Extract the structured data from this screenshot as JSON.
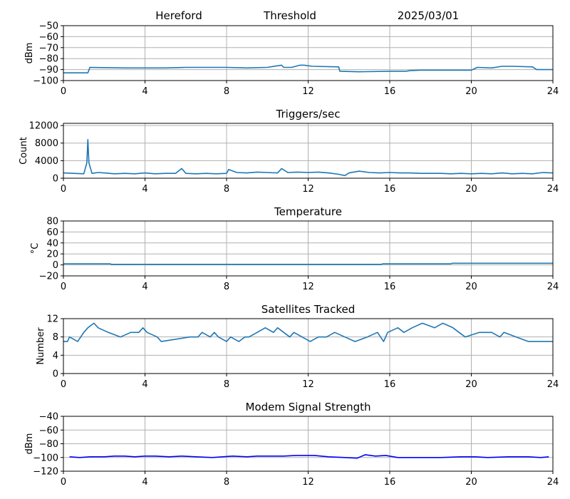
{
  "header": {
    "station": "Hereford",
    "metric": "Threshold",
    "date": "2025/03/01"
  },
  "colors": {
    "series": "#1f77b4",
    "modem": "#0000ff",
    "grid": "#b0b0b0",
    "axis": "#000000"
  },
  "chart_data": [
    {
      "type": "line",
      "title": "",
      "xlabel": "",
      "ylabel": "dBm",
      "xlim": [
        0,
        24
      ],
      "ylim": [
        -100,
        -50
      ],
      "xticks": [
        0,
        4,
        8,
        12,
        16,
        20,
        24
      ],
      "yticks": [
        -100,
        -90,
        -80,
        -70,
        -60,
        -50
      ],
      "grid": true,
      "series": [
        {
          "x": [
            0,
            1.2,
            1.3,
            3,
            5,
            6,
            8,
            9,
            10,
            10.7,
            10.8,
            11.2,
            11.6,
            11.8,
            12.2,
            13.5,
            13.55,
            14.5,
            16,
            16.8,
            17,
            17.5,
            18,
            20,
            20.3,
            21,
            21.5,
            22,
            23,
            23.2,
            24
          ],
          "y": [
            -93,
            -93,
            -88,
            -88.5,
            -88.5,
            -88,
            -88,
            -88.5,
            -88,
            -86,
            -88,
            -88,
            -86,
            -86,
            -87,
            -87.5,
            -91.5,
            -92,
            -91.5,
            -91.5,
            -91,
            -90.5,
            -90.5,
            -90.5,
            -88,
            -88.5,
            -87,
            -87,
            -87.5,
            -90,
            -90
          ]
        }
      ]
    },
    {
      "type": "line",
      "title": "Triggers/sec",
      "xlabel": "",
      "ylabel": "Count",
      "xlim": [
        0,
        24
      ],
      "ylim": [
        0,
        12500
      ],
      "xticks": [
        0,
        4,
        8,
        12,
        16,
        20,
        24
      ],
      "yticks": [
        0,
        4000,
        8000,
        12000
      ],
      "grid": true,
      "series": [
        {
          "x": [
            0,
            0.5,
            1.0,
            1.15,
            1.2,
            1.25,
            1.4,
            1.7,
            2,
            2.5,
            3,
            3.5,
            4,
            4.5,
            5,
            5.5,
            5.8,
            6,
            6.5,
            7,
            7.5,
            8,
            8.1,
            8.5,
            9,
            9.5,
            10,
            10.5,
            10.7,
            11,
            11.5,
            12,
            12.5,
            13,
            13.5,
            13.8,
            14,
            14.5,
            15,
            15.5,
            16,
            16.5,
            17,
            17.5,
            18,
            18.5,
            19,
            19.5,
            20,
            20.5,
            21,
            21.5,
            22,
            22.5,
            23,
            23.5,
            24
          ],
          "y": [
            1200,
            1100,
            1000,
            3500,
            8800,
            3500,
            1100,
            1300,
            1200,
            1000,
            1100,
            1000,
            1200,
            1000,
            1100,
            1100,
            2200,
            1100,
            1000,
            1100,
            1000,
            1100,
            2000,
            1300,
            1200,
            1400,
            1300,
            1200,
            2200,
            1300,
            1400,
            1300,
            1400,
            1200,
            900,
            600,
            1200,
            1600,
            1300,
            1200,
            1300,
            1200,
            1200,
            1100,
            1100,
            1100,
            1000,
            1100,
            1000,
            1100,
            1000,
            1200,
            1000,
            1100,
            1000,
            1300,
            1200
          ]
        }
      ]
    },
    {
      "type": "line",
      "title": "Temperature",
      "xlabel": "",
      "ylabel": "°C",
      "xlim": [
        0,
        24
      ],
      "ylim": [
        -20,
        80
      ],
      "xticks": [
        0,
        4,
        8,
        12,
        16,
        20,
        24
      ],
      "yticks": [
        -20,
        0,
        20,
        40,
        60,
        80
      ],
      "grid": true,
      "series": [
        {
          "x": [
            0,
            2.3,
            2.35,
            15.6,
            15.65,
            19,
            19.05,
            24
          ],
          "y": [
            2,
            2,
            1,
            1,
            2,
            2,
            3,
            3
          ]
        }
      ]
    },
    {
      "type": "line",
      "title": "Satellites Tracked",
      "xlabel": "",
      "ylabel": "Number",
      "xlim": [
        0,
        24
      ],
      "ylim": [
        0,
        12
      ],
      "xticks": [
        0,
        4,
        8,
        12,
        16,
        20,
        24
      ],
      "yticks": [
        0,
        4,
        8,
        12
      ],
      "grid": true,
      "series": [
        {
          "x": [
            0,
            0.2,
            0.3,
            0.7,
            1.0,
            1.2,
            1.5,
            1.7,
            2.2,
            2.8,
            3.3,
            3.7,
            3.9,
            4.1,
            4.6,
            4.8,
            6.2,
            6.6,
            6.8,
            7.2,
            7.4,
            7.6,
            8.0,
            8.2,
            8.6,
            8.9,
            9.1,
            9.5,
            9.9,
            10.3,
            10.5,
            11.1,
            11.3,
            12.1,
            12.5,
            12.9,
            13.3,
            13.8,
            14.3,
            14.9,
            15.4,
            15.7,
            15.9,
            16.4,
            16.7,
            17.1,
            17.6,
            18.2,
            18.6,
            19.1,
            19.4,
            19.7,
            20.4,
            21.0,
            21.4,
            21.6,
            22.2,
            22.8,
            23.5,
            24
          ],
          "y": [
            7,
            7,
            8,
            7,
            9,
            10,
            11,
            10,
            9,
            8,
            9,
            9,
            10,
            9,
            8,
            7,
            8,
            8,
            9,
            8,
            9,
            8,
            7,
            8,
            7,
            8,
            8,
            9,
            10,
            9,
            10,
            8,
            9,
            7,
            8,
            8,
            9,
            8,
            7,
            8,
            9,
            7,
            9,
            10,
            9,
            10,
            11,
            10,
            11,
            10,
            9,
            8,
            9,
            9,
            8,
            9,
            8,
            7,
            7,
            7
          ]
        }
      ]
    },
    {
      "type": "line",
      "title": "Modem Signal Strength",
      "xlabel": "",
      "ylabel": "dBm",
      "xlim": [
        0,
        24
      ],
      "ylim": [
        -120,
        -40
      ],
      "xticks": [
        0,
        4,
        8,
        12,
        16,
        20,
        24
      ],
      "yticks": [
        -120,
        -100,
        -80,
        -60,
        -40
      ],
      "grid": true,
      "series": [
        {
          "x": [
            0.3,
            0.8,
            1.3,
            2.0,
            2.5,
            3.0,
            3.5,
            4.0,
            4.5,
            5.2,
            5.8,
            6.5,
            7.3,
            7.8,
            8.3,
            9.0,
            9.5,
            10.1,
            10.8,
            11.4,
            12.3,
            13.0,
            13.8,
            14.4,
            14.8,
            15.3,
            15.8,
            16.4,
            18.0,
            18.5,
            19.5,
            20.2,
            20.8,
            21.8,
            22.8,
            23.4,
            23.8
          ],
          "y": [
            -99,
            -100,
            -99,
            -99,
            -98,
            -98,
            -99,
            -98,
            -98,
            -99,
            -98,
            -99,
            -100,
            -99,
            -98,
            -99,
            -98,
            -98,
            -98,
            -97,
            -97,
            -99,
            -100,
            -101,
            -96,
            -98,
            -97,
            -100,
            -100,
            -100,
            -99,
            -99,
            -100,
            -99,
            -99,
            -100,
            -99
          ]
        }
      ]
    }
  ]
}
